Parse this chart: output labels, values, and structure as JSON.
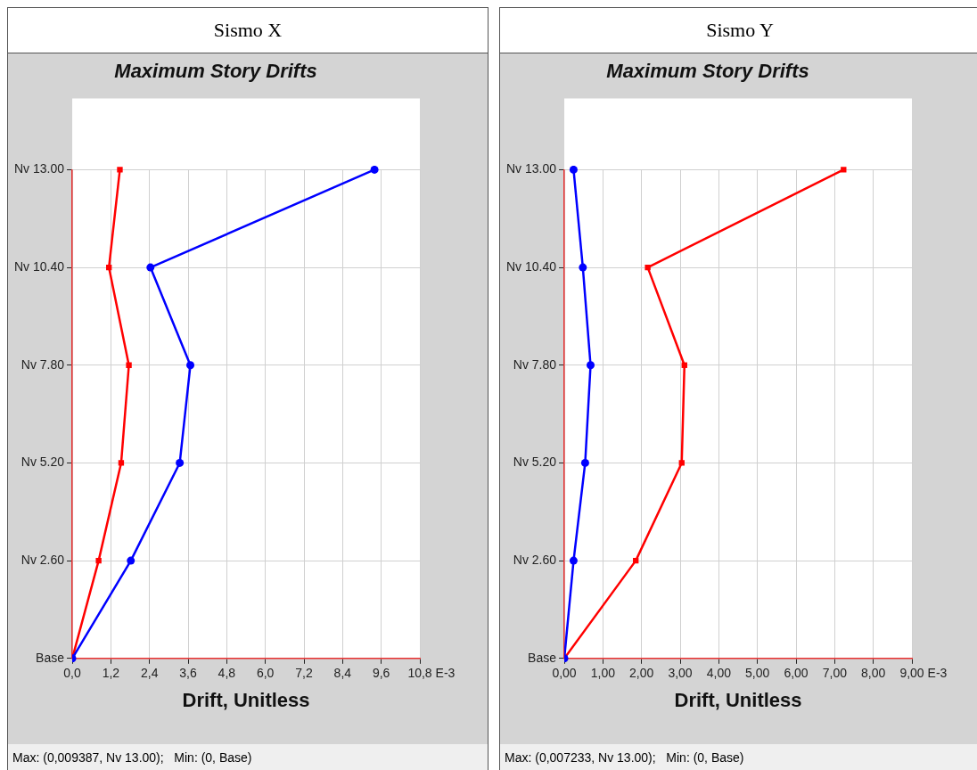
{
  "chart_data": [
    {
      "type": "line",
      "subtitle": "Sismo X",
      "title": "Maximum Story Drifts",
      "xlabel": "Drift, Unitless",
      "orientation": "horizontal",
      "categories": [
        "Nv 13.00",
        "Nv 10.40",
        "Nv 7.80",
        "Nv 5.20",
        "Nv 2.60",
        "Base"
      ],
      "series": [
        {
          "color": "#0000ff",
          "marker": "circle",
          "values": [
            9.39,
            2.43,
            3.67,
            3.34,
            1.82,
            0
          ]
        },
        {
          "color": "#ff0000",
          "marker": "square",
          "values": [
            1.48,
            1.14,
            1.76,
            1.52,
            0.82,
            0
          ]
        }
      ],
      "xlim": [
        0,
        10.8
      ],
      "xticks": [
        {
          "value": 0,
          "label": "0,0"
        },
        {
          "value": 1.2,
          "label": "1,2"
        },
        {
          "value": 2.4,
          "label": "2,4"
        },
        {
          "value": 3.6,
          "label": "3,6"
        },
        {
          "value": 4.8,
          "label": "4,8"
        },
        {
          "value": 6,
          "label": "6,0"
        },
        {
          "value": 7.2,
          "label": "7,2"
        },
        {
          "value": 8.4,
          "label": "8,4"
        },
        {
          "value": 9.6,
          "label": "9,6"
        },
        {
          "value": 10.8,
          "label": "10,8"
        }
      ],
      "grid": true,
      "annotations": [
        "E-3",
        "Max: (0,009387, Nv 13.00);   Min: (0, Base)"
      ]
    },
    {
      "type": "line",
      "subtitle": "Sismo Y",
      "title": "Maximum Story Drifts",
      "xlabel": "Drift, Unitless",
      "orientation": "horizontal",
      "categories": [
        "Nv 13.00",
        "Nv 10.40",
        "Nv 7.80",
        "Nv 5.20",
        "Nv 2.60",
        "Base"
      ],
      "series": [
        {
          "color": "#0000ff",
          "marker": "circle",
          "values": [
            0.24,
            0.48,
            0.68,
            0.54,
            0.24,
            0
          ]
        },
        {
          "color": "#ff0000",
          "marker": "square",
          "values": [
            7.23,
            2.16,
            3.11,
            3.04,
            1.85,
            0
          ]
        }
      ],
      "xlim": [
        0,
        9
      ],
      "xticks": [
        {
          "value": 0,
          "label": "0,00"
        },
        {
          "value": 1,
          "label": "1,00"
        },
        {
          "value": 2,
          "label": "2,00"
        },
        {
          "value": 3,
          "label": "3,00"
        },
        {
          "value": 4,
          "label": "4,00"
        },
        {
          "value": 5,
          "label": "5,00"
        },
        {
          "value": 6,
          "label": "6,00"
        },
        {
          "value": 7,
          "label": "7,00"
        },
        {
          "value": 8,
          "label": "8,00"
        },
        {
          "value": 9,
          "label": "9,00"
        }
      ],
      "grid": true,
      "annotations": [
        "E-3",
        "Max: (0,007233, Nv 13.00);   Min: (0, Base)"
      ]
    }
  ]
}
